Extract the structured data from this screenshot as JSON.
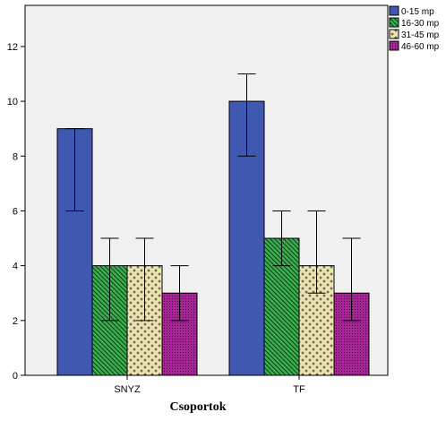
{
  "chart_data": {
    "type": "bar",
    "title": "",
    "xlabel": "Csoportok",
    "ylabel": "",
    "categories": [
      "SNYZ",
      "TF"
    ],
    "ylim": [
      0,
      13.5
    ],
    "yticks": [
      0,
      2,
      4,
      6,
      8,
      10,
      12
    ],
    "grid": false,
    "legend_position": "top-right",
    "series": [
      {
        "name": "0-15 mp",
        "values": [
          9,
          10
        ],
        "error_low": [
          6,
          8
        ],
        "error_high": [
          9,
          11
        ],
        "color": "#3f59b0",
        "pattern": "solid"
      },
      {
        "name": "16-30 mp",
        "values": [
          4,
          5
        ],
        "error_low": [
          2,
          4
        ],
        "error_high": [
          5,
          6
        ],
        "color": "#3dae52",
        "pattern": "diagonal-hatch"
      },
      {
        "name": "31-45 mp",
        "values": [
          4,
          4
        ],
        "error_low": [
          2,
          3
        ],
        "error_high": [
          5,
          6
        ],
        "color": "#ece3b2",
        "pattern": "cross-dots"
      },
      {
        "name": "46-60 mp",
        "values": [
          3,
          3
        ],
        "error_low": [
          2,
          2
        ],
        "error_high": [
          4,
          5
        ],
        "color": "#a52595",
        "pattern": "dotted"
      }
    ]
  },
  "colors": {
    "plot_background": "#f0f0f0",
    "axis": "#000000"
  }
}
